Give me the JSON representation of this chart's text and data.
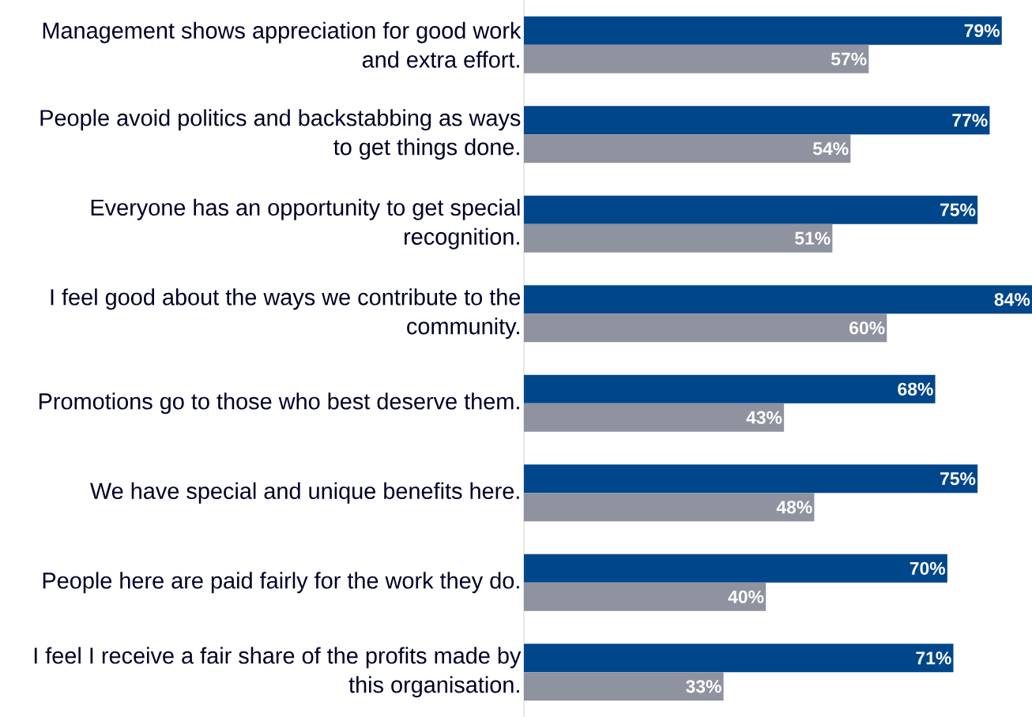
{
  "chart_data": {
    "type": "bar",
    "orientation": "horizontal",
    "categories": [
      "Management shows appreciation for good work and extra effort.",
      "People avoid politics and backstabbing as ways to get things done.",
      "Everyone has an opportunity to get special recognition.",
      "I feel good about the ways we contribute to the community.",
      "Promotions go to those who best deserve them.",
      "We have special and unique benefits here.",
      "People here are paid fairly for the work they do.",
      "I feel I receive a fair share of the profits made by this organisation."
    ],
    "series": [
      {
        "color": "#00468b",
        "values": [
          79,
          77,
          75,
          84,
          68,
          75,
          70,
          71
        ],
        "value_labels": [
          "79%",
          "77%",
          "75%",
          "84%",
          "68%",
          "75%",
          "70%",
          "71%"
        ]
      },
      {
        "color": "#8f939f",
        "values": [
          57,
          54,
          51,
          60,
          43,
          48,
          40,
          33
        ],
        "value_labels": [
          "57%",
          "54%",
          "51%",
          "60%",
          "43%",
          "48%",
          "40%",
          "33%"
        ]
      }
    ]
  }
}
